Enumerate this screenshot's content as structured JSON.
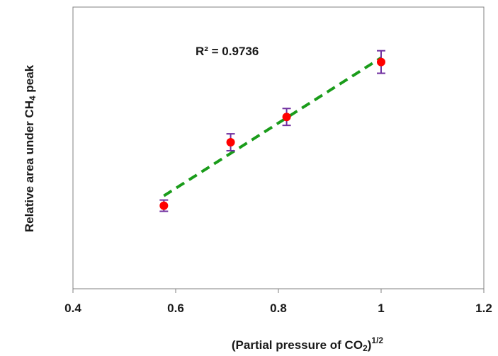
{
  "chart_data": {
    "type": "scatter",
    "xlabel_main": "(Partial pressure of CO",
    "xlabel_sub": "2",
    "xlabel_close": ")",
    "xlabel_sup": "1/2",
    "ylabel_main": "Relative area under CH",
    "ylabel_sub": "4",
    "ylabel_end": " peak",
    "xlim": [
      0.4,
      1.2
    ],
    "ylim": [
      0,
      1
    ],
    "x_ticks": [
      "0.4",
      "0.6",
      "0.8",
      "1",
      "1.2"
    ],
    "x_tick_values": [
      0.4,
      0.6,
      0.8,
      1.0,
      1.2
    ],
    "y_ticks_visible": false,
    "grid": false,
    "annotation": "R² = 0.9736",
    "series": [
      {
        "type": "scatter",
        "marker_color": "#ff0000",
        "errorbar_color": "#7030a0",
        "points": [
          {
            "x": 0.577,
            "y": 0.295,
            "err": 0.02
          },
          {
            "x": 0.707,
            "y": 0.52,
            "err": 0.03
          },
          {
            "x": 0.816,
            "y": 0.61,
            "err": 0.03
          },
          {
            "x": 1.0,
            "y": 0.805,
            "err": 0.04
          }
        ]
      },
      {
        "type": "trendline",
        "color": "#1a9c1a",
        "style": "dashed",
        "x": [
          0.577,
          1.0
        ],
        "y": [
          0.33,
          0.82
        ]
      }
    ]
  }
}
